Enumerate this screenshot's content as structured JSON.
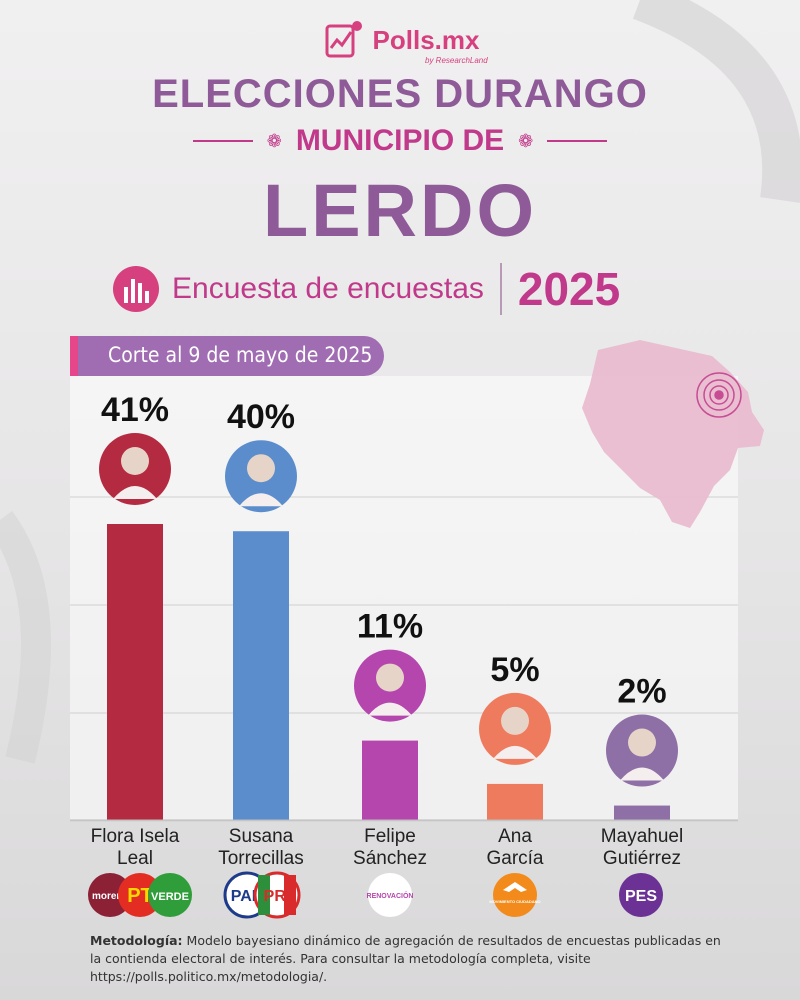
{
  "brand": {
    "name": "Polls.mx",
    "sub": "by ResearchLand"
  },
  "header": {
    "title_line1": "ELECCIONES DURANGO",
    "title_line2": "MUNICIPIO DE",
    "title_line3": "LERDO",
    "subtitle": "Encuesta de encuestas",
    "year": "2025",
    "cutoff": "Corte al 9 de mayo de 2025"
  },
  "colors": {
    "accent": "#c0398a",
    "purple": "#8e5a97",
    "band": "#a06cb2"
  },
  "chart_data": {
    "type": "bar",
    "categories": [
      "Flora Isela Leal",
      "Susana Torrecillas",
      "Felipe Sánchez",
      "Ana García",
      "Mayahuel Gutiérrez"
    ],
    "label_lines": [
      [
        "Flora Isela",
        "Leal"
      ],
      [
        "Susana",
        "Torrecillas"
      ],
      [
        "Felipe",
        "Sánchez"
      ],
      [
        "Ana",
        "García"
      ],
      [
        "Mayahuel",
        "Gutiérrez"
      ]
    ],
    "values": [
      41,
      40,
      11,
      5,
      2
    ],
    "value_labels": [
      "41%",
      "40%",
      "11%",
      "5%",
      "2%"
    ],
    "bar_colors": [
      "#b42a41",
      "#5b8dcc",
      "#b446ad",
      "#ef7b5e",
      "#8e6fa6"
    ],
    "ylim": [
      0,
      45
    ],
    "grid": true
  },
  "parties": [
    {
      "candidate": "Flora Isela Leal",
      "logos": [
        "morena",
        "PT",
        "VERDE"
      ]
    },
    {
      "candidate": "Susana Torrecillas",
      "logos": [
        "PAN",
        "PRI"
      ]
    },
    {
      "candidate": "Felipe Sánchez",
      "logos": [
        "RENOVACIÓN"
      ]
    },
    {
      "candidate": "Ana García",
      "logos": [
        "MOVIMIENTO CIUDADANO"
      ]
    },
    {
      "candidate": "Mayahuel Gutiérrez",
      "logos": [
        "PES"
      ]
    }
  ],
  "methodology": {
    "label": "Metodología:",
    "text": "Modelo bayesiano dinámico de agregación de resultados de encuestas publicadas en la contienda electoral de interés. Para consultar la metodología completa, visite https://polls.politico.mx/metodologia/."
  }
}
